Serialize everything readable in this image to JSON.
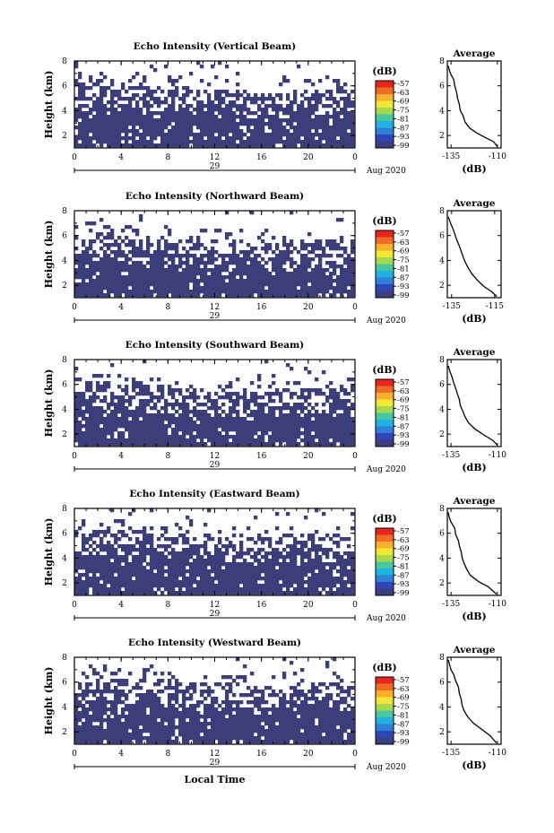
{
  "figure": {
    "xlabel": "Local Time",
    "panel_ylabel": "Height (km)",
    "date_day": "29",
    "date_month": "Aug 2020",
    "colorbar_units": "(dB)",
    "colorbar_ticks": [
      "-57",
      "-63",
      "-69",
      "-75",
      "-81",
      "-87",
      "-93",
      "-99"
    ],
    "colorbar_colors": [
      "#e8261f",
      "#f26b24",
      "#f8b02d",
      "#f2e733",
      "#a6d84e",
      "#46c7a0",
      "#21b2e4",
      "#2e80d8",
      "#2f45b8",
      "#3a3f82"
    ],
    "echo_color": "#3b3e7a",
    "average_title": "Average",
    "average_xlabel": "(dB)"
  },
  "chart_data": [
    {
      "type": "heatmap",
      "title": "Echo Intensity (Vertical Beam)",
      "ylabel": "Height (km)",
      "xlabel": "",
      "x_ticks": [
        "0",
        "4",
        "8",
        "12",
        "16",
        "20",
        "0"
      ],
      "y_ticks": [
        "2",
        "4",
        "6",
        "8"
      ],
      "xlim": [
        0,
        24
      ],
      "ylim": [
        1,
        8
      ],
      "colorbar_ticks": [
        "-57",
        "-63",
        "-69",
        "-75",
        "-81",
        "-87",
        "-93",
        "-99"
      ],
      "echo_top_km": [
        [
          0,
          6.5
        ],
        [
          4,
          6.2
        ],
        [
          8,
          6.0
        ],
        [
          12,
          5.6
        ],
        [
          16,
          5.5
        ],
        [
          20,
          5.8
        ],
        [
          24,
          5.7
        ]
      ],
      "average_profile": {
        "title": "Average",
        "xlabel": "(dB)",
        "x_ticks": [
          "-135",
          "-110"
        ],
        "xlim": [
          -137,
          -108
        ],
        "y_ticks": [
          "2",
          "4",
          "6",
          "8"
        ],
        "ylim": [
          1,
          8
        ],
        "points": [
          [
            -136.5,
            7.6
          ],
          [
            -135.8,
            7.2
          ],
          [
            -135,
            6.9
          ],
          [
            -133.5,
            6.5
          ],
          [
            -133,
            6.0
          ],
          [
            -132,
            5.5
          ],
          [
            -131.5,
            5.0
          ],
          [
            -130.5,
            4.5
          ],
          [
            -130,
            4.0
          ],
          [
            -128.5,
            3.6
          ],
          [
            -127.5,
            3.1
          ],
          [
            -125,
            2.6
          ],
          [
            -121,
            2.2
          ],
          [
            -116,
            1.8
          ],
          [
            -112,
            1.5
          ],
          [
            -110,
            1.1
          ]
        ]
      }
    },
    {
      "type": "heatmap",
      "title": "Echo Intensity (Northward Beam)",
      "ylabel": "Height (km)",
      "xlabel": "",
      "x_ticks": [
        "0",
        "4",
        "8",
        "12",
        "16",
        "20",
        "0"
      ],
      "y_ticks": [
        "2",
        "4",
        "6",
        "8"
      ],
      "xlim": [
        0,
        24
      ],
      "ylim": [
        1,
        8
      ],
      "colorbar_ticks": [
        "-57",
        "-63",
        "-69",
        "-75",
        "-81",
        "-87",
        "-93",
        "-99"
      ],
      "echo_top_km": [
        [
          0,
          6.4
        ],
        [
          4,
          6.0
        ],
        [
          8,
          5.7
        ],
        [
          12,
          5.6
        ],
        [
          16,
          5.4
        ],
        [
          20,
          5.6
        ],
        [
          24,
          5.5
        ]
      ],
      "average_profile": {
        "title": "Average",
        "xlabel": "(dB)",
        "x_ticks": [
          "-135",
          "-115"
        ],
        "xlim": [
          -137,
          -112
        ],
        "y_ticks": [
          "2",
          "4",
          "6",
          "8"
        ],
        "ylim": [
          1,
          8
        ],
        "points": [
          [
            -136.5,
            7.5
          ],
          [
            -135.5,
            7.0
          ],
          [
            -134.5,
            6.6
          ],
          [
            -133.5,
            6.1
          ],
          [
            -132.5,
            5.6
          ],
          [
            -131.5,
            5.2
          ],
          [
            -130.5,
            4.7
          ],
          [
            -129.5,
            4.2
          ],
          [
            -128.5,
            3.8
          ],
          [
            -127,
            3.3
          ],
          [
            -125.5,
            2.9
          ],
          [
            -123,
            2.4
          ],
          [
            -120,
            1.9
          ],
          [
            -116.5,
            1.5
          ],
          [
            -114,
            1.1
          ]
        ]
      }
    },
    {
      "type": "heatmap",
      "title": "Echo Intensity (Southward Beam)",
      "ylabel": "Height (km)",
      "xlabel": "",
      "x_ticks": [
        "0",
        "4",
        "8",
        "12",
        "16",
        "20",
        "0"
      ],
      "y_ticks": [
        "2",
        "4",
        "6",
        "8"
      ],
      "xlim": [
        0,
        24
      ],
      "ylim": [
        1,
        8
      ],
      "colorbar_ticks": [
        "-57",
        "-63",
        "-69",
        "-75",
        "-81",
        "-87",
        "-93",
        "-99"
      ],
      "echo_top_km": [
        [
          0,
          6.5
        ],
        [
          4,
          6.1
        ],
        [
          8,
          5.8
        ],
        [
          12,
          5.5
        ],
        [
          16,
          5.4
        ],
        [
          20,
          5.7
        ],
        [
          24,
          5.6
        ]
      ],
      "average_profile": {
        "title": "Average",
        "xlabel": "(dB)",
        "x_ticks": [
          "-135",
          "-110"
        ],
        "xlim": [
          -137,
          -108
        ],
        "y_ticks": [
          "2",
          "4",
          "6",
          "8"
        ],
        "ylim": [
          1,
          8
        ],
        "points": [
          [
            -136.5,
            7.5
          ],
          [
            -135.5,
            7.0
          ],
          [
            -134.5,
            6.6
          ],
          [
            -133.5,
            6.1
          ],
          [
            -132.5,
            5.7
          ],
          [
            -131.5,
            5.2
          ],
          [
            -130.5,
            4.8
          ],
          [
            -130,
            4.3
          ],
          [
            -128.5,
            3.8
          ],
          [
            -127.5,
            3.4
          ],
          [
            -125.5,
            2.9
          ],
          [
            -122,
            2.4
          ],
          [
            -117,
            1.9
          ],
          [
            -112.5,
            1.5
          ],
          [
            -110,
            1.1
          ]
        ]
      }
    },
    {
      "type": "heatmap",
      "title": "Echo Intensity (Eastward Beam)",
      "ylabel": "Height (km)",
      "xlabel": "",
      "x_ticks": [
        "0",
        "4",
        "8",
        "12",
        "16",
        "20",
        "0"
      ],
      "y_ticks": [
        "2",
        "4",
        "6",
        "8"
      ],
      "xlim": [
        0,
        24
      ],
      "ylim": [
        1,
        8
      ],
      "colorbar_ticks": [
        "-57",
        "-63",
        "-69",
        "-75",
        "-81",
        "-87",
        "-93",
        "-99"
      ],
      "echo_top_km": [
        [
          0,
          6.6
        ],
        [
          4,
          6.3
        ],
        [
          8,
          6.0
        ],
        [
          12,
          5.8
        ],
        [
          16,
          5.7
        ],
        [
          20,
          5.9
        ],
        [
          24,
          5.8
        ]
      ],
      "average_profile": {
        "title": "Average",
        "xlabel": "(dB)",
        "x_ticks": [
          "-135",
          "-110"
        ],
        "xlim": [
          -137,
          -108
        ],
        "y_ticks": [
          "2",
          "4",
          "6",
          "8"
        ],
        "ylim": [
          1,
          8
        ],
        "points": [
          [
            -136.5,
            7.7
          ],
          [
            -136,
            7.3
          ],
          [
            -135,
            6.9
          ],
          [
            -133,
            6.4
          ],
          [
            -132.5,
            5.9
          ],
          [
            -131,
            5.4
          ],
          [
            -130.5,
            5.0
          ],
          [
            -129.5,
            4.5
          ],
          [
            -129,
            4.0
          ],
          [
            -128,
            3.6
          ],
          [
            -126.5,
            3.1
          ],
          [
            -124.5,
            2.6
          ],
          [
            -120,
            2.1
          ],
          [
            -115,
            1.7
          ],
          [
            -110.5,
            1.1
          ]
        ]
      }
    },
    {
      "type": "heatmap",
      "title": "Echo Intensity (Westward Beam)",
      "ylabel": "Height (km)",
      "xlabel": "Local Time",
      "x_ticks": [
        "0",
        "4",
        "8",
        "12",
        "16",
        "20",
        "0"
      ],
      "y_ticks": [
        "2",
        "4",
        "6",
        "8"
      ],
      "xlim": [
        0,
        24
      ],
      "ylim": [
        1,
        8
      ],
      "colorbar_ticks": [
        "-57",
        "-63",
        "-69",
        "-75",
        "-81",
        "-87",
        "-93",
        "-99"
      ],
      "echo_top_km": [
        [
          0,
          6.7
        ],
        [
          4,
          6.4
        ],
        [
          8,
          6.1
        ],
        [
          12,
          5.8
        ],
        [
          16,
          5.6
        ],
        [
          20,
          5.9
        ],
        [
          24,
          5.8
        ]
      ],
      "average_profile": {
        "title": "Average",
        "xlabel": "(dB)",
        "x_ticks": [
          "-135",
          "-110"
        ],
        "xlim": [
          -137,
          -108
        ],
        "y_ticks": [
          "2",
          "4",
          "6",
          "8"
        ],
        "ylim": [
          1,
          8
        ],
        "points": [
          [
            -136.5,
            7.8
          ],
          [
            -135.8,
            7.4
          ],
          [
            -135,
            7.0
          ],
          [
            -133.5,
            6.6
          ],
          [
            -132.5,
            6.1
          ],
          [
            -131,
            5.6
          ],
          [
            -130.5,
            5.1
          ],
          [
            -129.5,
            4.6
          ],
          [
            -129,
            4.1
          ],
          [
            -128,
            3.7
          ],
          [
            -126,
            3.2
          ],
          [
            -123,
            2.7
          ],
          [
            -118.5,
            2.2
          ],
          [
            -114,
            1.7
          ],
          [
            -110.5,
            1.1
          ]
        ]
      }
    }
  ]
}
